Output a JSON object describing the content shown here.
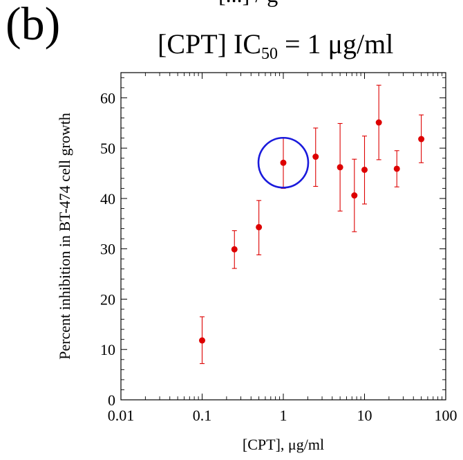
{
  "figure": {
    "panel_label": "(b)",
    "top_partial_text": "[...] / g"
  },
  "chart_data": {
    "type": "scatter",
    "title": {
      "prefix": "[CPT] IC",
      "subscript": "50",
      "suffix": " = 1 μg/ml"
    },
    "xlabel": "[CPT], μg/ml",
    "ylabel": "Percent inhibition in BT-474 cell growth",
    "xscale": "log",
    "xlim": [
      0.01,
      100
    ],
    "ylim": [
      0,
      65
    ],
    "xticks": [
      {
        "value": 0.01,
        "label": "0.01"
      },
      {
        "value": 0.1,
        "label": "0.1"
      },
      {
        "value": 1,
        "label": "1"
      },
      {
        "value": 10,
        "label": "10"
      },
      {
        "value": 100,
        "label": "100"
      }
    ],
    "yticks": [
      {
        "value": 0,
        "label": "0"
      },
      {
        "value": 10,
        "label": "10"
      },
      {
        "value": 20,
        "label": "20"
      },
      {
        "value": 30,
        "label": "30"
      },
      {
        "value": 40,
        "label": "40"
      },
      {
        "value": 50,
        "label": "50"
      },
      {
        "value": 60,
        "label": "60"
      }
    ],
    "grid": false,
    "colors": {
      "points": "#dd0000",
      "error_bars": "#dd0000",
      "highlight_circle": "#1a1adc",
      "axes": "#000000"
    },
    "series": [
      {
        "points": [
          {
            "x": 0.1,
            "y": 11.8,
            "ylow": 7.2,
            "yhigh": 16.5
          },
          {
            "x": 0.25,
            "y": 29.9,
            "ylow": 26.1,
            "yhigh": 33.6
          },
          {
            "x": 0.5,
            "y": 34.3,
            "ylow": 28.8,
            "yhigh": 39.6
          },
          {
            "x": 1,
            "y": 47.1,
            "ylow": 42.0,
            "yhigh": 52.0
          },
          {
            "x": 2.5,
            "y": 48.3,
            "ylow": 42.4,
            "yhigh": 54.0
          },
          {
            "x": 5,
            "y": 46.2,
            "ylow": 37.5,
            "yhigh": 54.9
          },
          {
            "x": 7.5,
            "y": 40.6,
            "ylow": 33.4,
            "yhigh": 47.8
          },
          {
            "x": 10,
            "y": 45.7,
            "ylow": 38.9,
            "yhigh": 52.4
          },
          {
            "x": 15,
            "y": 55.1,
            "ylow": 47.7,
            "yhigh": 62.5
          },
          {
            "x": 25,
            "y": 45.9,
            "ylow": 42.3,
            "yhigh": 49.5
          },
          {
            "x": 50,
            "y": 51.8,
            "ylow": 47.1,
            "yhigh": 56.6
          }
        ]
      }
    ],
    "highlight": {
      "x": 1,
      "y": 47.1,
      "shape": "circle"
    }
  }
}
